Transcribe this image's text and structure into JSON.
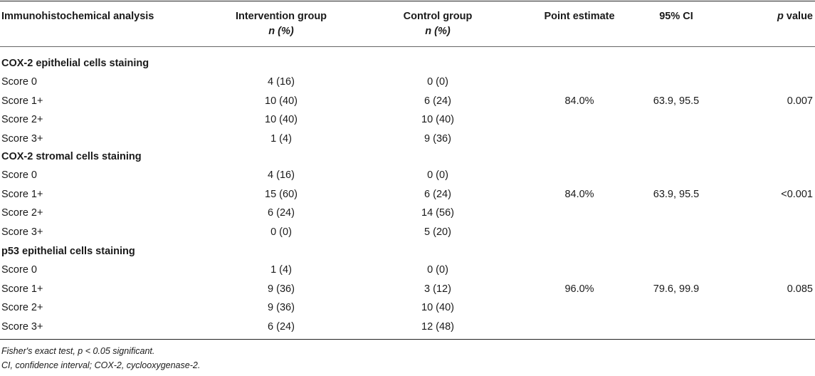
{
  "header": {
    "col1": "Immunohistochemical analysis",
    "col2_line1": "Intervention group",
    "col2_line2": "n (%)",
    "col3_line1": "Control group",
    "col3_line2": "n (%)",
    "col4": "Point estimate",
    "col5": "95% CI",
    "col6": "p value"
  },
  "sections": [
    {
      "title": "COX-2 epithelial cells staining",
      "rows": [
        {
          "label": "Score 0",
          "intervention": "4 (16)",
          "control": "0 (0)"
        },
        {
          "label": "Score 1+",
          "intervention": "10 (40)",
          "control": "6 (24)"
        },
        {
          "label": "Score 2+",
          "intervention": "10 (40)",
          "control": "10 (40)"
        },
        {
          "label": "Score 3+",
          "intervention": "1 (4)",
          "control": "9 (36)"
        }
      ],
      "point_estimate": "84.0%",
      "ci": "63.9, 95.5",
      "p_value": "0.007"
    },
    {
      "title": "COX-2 stromal cells staining",
      "rows": [
        {
          "label": "Score 0",
          "intervention": "4 (16)",
          "control": "0 (0)"
        },
        {
          "label": "Score 1+",
          "intervention": "15 (60)",
          "control": "6 (24)"
        },
        {
          "label": "Score 2+",
          "intervention": "6 (24)",
          "control": "14 (56)"
        },
        {
          "label": "Score 3+",
          "intervention": "0 (0)",
          "control": "5 (20)"
        }
      ],
      "point_estimate": "84.0%",
      "ci": "63.9, 95.5",
      "p_value": "<0.001"
    },
    {
      "title": "p53 epithelial cells staining",
      "rows": [
        {
          "label": "Score 0",
          "intervention": "1 (4)",
          "control": "0 (0)"
        },
        {
          "label": "Score 1+",
          "intervention": "9 (36)",
          "control": "3 (12)"
        },
        {
          "label": "Score 2+",
          "intervention": "9 (36)",
          "control": "10 (40)"
        },
        {
          "label": "Score 3+",
          "intervention": "6 (24)",
          "control": "12 (48)"
        }
      ],
      "point_estimate": "96.0%",
      "ci": "79.6, 99.9",
      "p_value": "0.085"
    }
  ],
  "footnotes": [
    "Fisher's exact test, p < 0.05 significant.",
    "CI, confidence interval; COX-2, cyclooxygenase-2."
  ]
}
